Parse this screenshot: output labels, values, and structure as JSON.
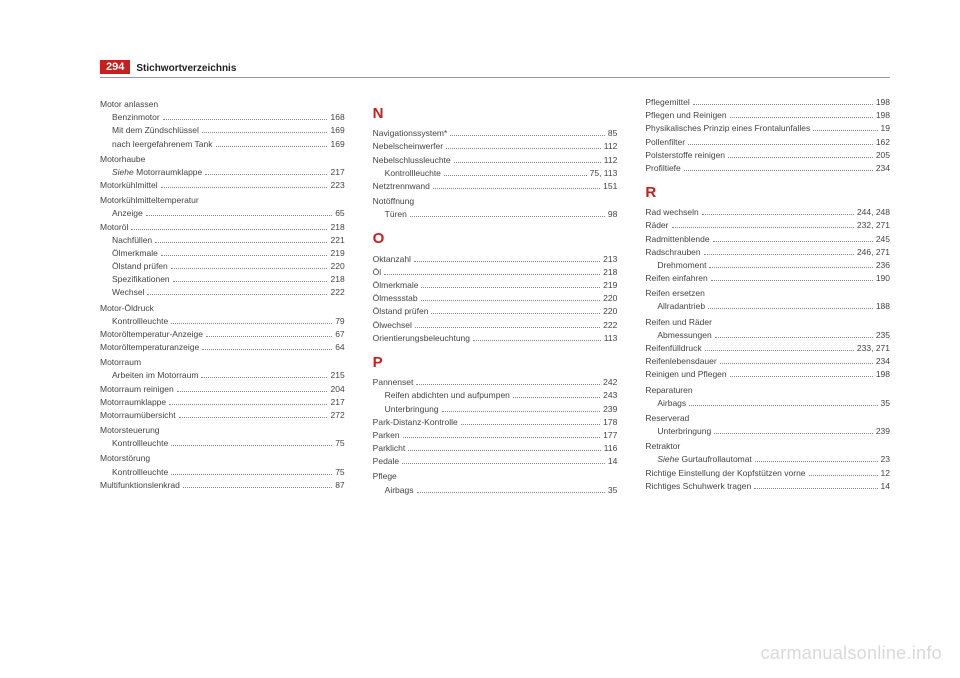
{
  "header": {
    "page_number": "294",
    "title": "Stichwortverzeichnis"
  },
  "watermark": "carmanualsonline.info",
  "columns": [
    {
      "items": [
        {
          "type": "head",
          "text": "Motor anlassen"
        },
        {
          "type": "sub",
          "label": "Benzinmotor",
          "page": "168"
        },
        {
          "type": "sub",
          "label": "Mit dem Zündschlüssel",
          "page": "169"
        },
        {
          "type": "sub",
          "label": "nach leergefahrenem Tank",
          "page": "169"
        },
        {
          "type": "head",
          "text": "Motorhaube"
        },
        {
          "type": "sub",
          "label_html": "<span class=\"italic\">Siehe</span> Motorraumklappe",
          "page": "217"
        },
        {
          "type": "entry",
          "label": "Motorkühlmittel",
          "page": "223"
        },
        {
          "type": "head",
          "text": "Motorkühlmitteltemperatur"
        },
        {
          "type": "sub",
          "label": "Anzeige",
          "page": "65"
        },
        {
          "type": "entry",
          "label": "Motoröl",
          "page": "218"
        },
        {
          "type": "sub",
          "label": "Nachfüllen",
          "page": "221"
        },
        {
          "type": "sub",
          "label": "Ölmerkmale",
          "page": "219"
        },
        {
          "type": "sub",
          "label": "Ölstand prüfen",
          "page": "220"
        },
        {
          "type": "sub",
          "label": "Spezifikationen",
          "page": "218"
        },
        {
          "type": "sub",
          "label": "Wechsel",
          "page": "222"
        },
        {
          "type": "head",
          "text": "Motor-Öldruck"
        },
        {
          "type": "sub",
          "label": "Kontrollleuchte",
          "page": "79"
        },
        {
          "type": "entry",
          "label": "Motoröltemperatur-Anzeige",
          "page": "67"
        },
        {
          "type": "entry",
          "label": "Motoröltemperaturanzeige",
          "page": "64"
        },
        {
          "type": "head",
          "text": "Motorraum"
        },
        {
          "type": "sub",
          "label": "Arbeiten im Motorraum",
          "page": "215"
        },
        {
          "type": "entry",
          "label": "Motorraum reinigen",
          "page": "204"
        },
        {
          "type": "entry",
          "label": "Motorraumklappe",
          "page": "217"
        },
        {
          "type": "entry",
          "label": "Motorraumübersicht",
          "page": "272"
        },
        {
          "type": "head",
          "text": "Motorsteuerung"
        },
        {
          "type": "sub",
          "label": "Kontrollleuchte",
          "page": "75"
        },
        {
          "type": "head",
          "text": "Motorstörung"
        },
        {
          "type": "sub",
          "label": "Kontrollleuchte",
          "page": "75"
        },
        {
          "type": "entry",
          "label": "Multifunktionslenkrad",
          "page": "87"
        }
      ]
    },
    {
      "items": [
        {
          "type": "letter",
          "text": "N"
        },
        {
          "type": "entry",
          "label": "Navigationssystem*",
          "page": "85"
        },
        {
          "type": "entry",
          "label": "Nebelscheinwerfer",
          "page": "112"
        },
        {
          "type": "entry",
          "label": "Nebelschlussleuchte",
          "page": "112"
        },
        {
          "type": "sub",
          "label": "Kontrollleuchte",
          "page": "75, 113"
        },
        {
          "type": "entry",
          "label": "Netztrennwand",
          "page": "151"
        },
        {
          "type": "head",
          "text": "Notöffnung"
        },
        {
          "type": "sub",
          "label": "Türen",
          "page": "98"
        },
        {
          "type": "letter",
          "text": "O"
        },
        {
          "type": "entry",
          "label": "Oktanzahl",
          "page": "213"
        },
        {
          "type": "entry",
          "label": "Öl",
          "page": "218"
        },
        {
          "type": "entry",
          "label": "Ölmerkmale",
          "page": "219"
        },
        {
          "type": "entry",
          "label": "Ölmessstab",
          "page": "220"
        },
        {
          "type": "entry",
          "label": "Ölstand prüfen",
          "page": "220"
        },
        {
          "type": "entry",
          "label": "Ölwechsel",
          "page": "222"
        },
        {
          "type": "entry",
          "label": "Orientierungsbeleuchtung",
          "page": "113"
        },
        {
          "type": "letter",
          "text": "P"
        },
        {
          "type": "entry",
          "label": "Pannenset",
          "page": "242"
        },
        {
          "type": "sub",
          "label": "Reifen abdichten und aufpumpen",
          "page": "243"
        },
        {
          "type": "sub",
          "label": "Unterbringung",
          "page": "239"
        },
        {
          "type": "entry",
          "label": "Park-Distanz-Kontrolle",
          "page": "178"
        },
        {
          "type": "entry",
          "label": "Parken",
          "page": "177"
        },
        {
          "type": "entry",
          "label": "Parklicht",
          "page": "116"
        },
        {
          "type": "entry",
          "label": "Pedale",
          "page": "14"
        },
        {
          "type": "head",
          "text": "Pflege"
        },
        {
          "type": "sub",
          "label": "Airbags",
          "page": "35"
        }
      ]
    },
    {
      "items": [
        {
          "type": "entry",
          "label": "Pflegemittel",
          "page": "198"
        },
        {
          "type": "entry",
          "label": "Pflegen und Reinigen",
          "page": "198"
        },
        {
          "type": "entry",
          "label": "Physikalisches Prinzip eines Frontalunfalles",
          "page": "19"
        },
        {
          "type": "entry",
          "label": "Pollenfilter",
          "page": "162"
        },
        {
          "type": "entry",
          "label": "Polsterstoffe reinigen",
          "page": "205"
        },
        {
          "type": "entry",
          "label": "Profiltiefe",
          "page": "234"
        },
        {
          "type": "letter",
          "text": "R"
        },
        {
          "type": "entry",
          "label": "Rad wechseln",
          "page": "244, 248"
        },
        {
          "type": "entry",
          "label": "Räder",
          "page": "232, 271"
        },
        {
          "type": "entry",
          "label": "Radmittenblende",
          "page": "245"
        },
        {
          "type": "entry",
          "label": "Radschrauben",
          "page": "246, 271"
        },
        {
          "type": "sub",
          "label": "Drehmoment",
          "page": "236"
        },
        {
          "type": "entry",
          "label": "Reifen einfahren",
          "page": "190"
        },
        {
          "type": "head",
          "text": "Reifen ersetzen"
        },
        {
          "type": "sub",
          "label": "Allradantrieb",
          "page": "188"
        },
        {
          "type": "head",
          "text": "Reifen und Räder"
        },
        {
          "type": "sub",
          "label": "Abmessungen",
          "page": "235"
        },
        {
          "type": "entry",
          "label": "Reifenfülldruck",
          "page": "233, 271"
        },
        {
          "type": "entry",
          "label": "Reifenlebensdauer",
          "page": "234"
        },
        {
          "type": "entry",
          "label": "Reinigen und Pflegen",
          "page": "198"
        },
        {
          "type": "head",
          "text": "Reparaturen"
        },
        {
          "type": "sub",
          "label": "Airbags",
          "page": "35"
        },
        {
          "type": "head",
          "text": "Reserverad"
        },
        {
          "type": "sub",
          "label": "Unterbringung",
          "page": "239"
        },
        {
          "type": "head",
          "text": "Retraktor"
        },
        {
          "type": "sub",
          "label_html": "<span class=\"italic\">Siehe</span> Gurtaufrollautomat",
          "page": "23"
        },
        {
          "type": "entry",
          "label": "Richtige Einstellung der Kopfstützen vorne",
          "page": "12"
        },
        {
          "type": "entry",
          "label": "Richtiges Schuhwerk tragen",
          "page": "14"
        }
      ]
    }
  ]
}
